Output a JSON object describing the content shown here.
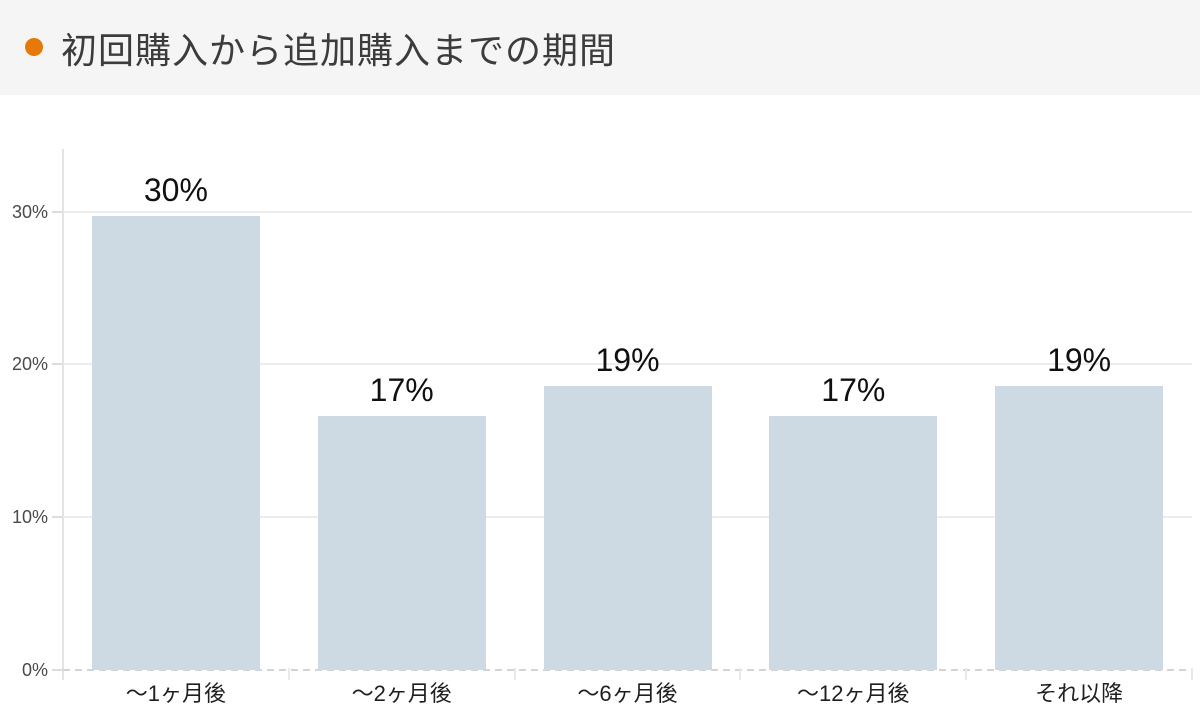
{
  "header": {
    "title": "初回購入から追加購入までの期間",
    "bullet_color": "#e6790a",
    "background": "#f5f5f5"
  },
  "chart_data": {
    "type": "bar",
    "title": "初回購入から追加購入までの期間",
    "categories": [
      "〜1ヶ月後",
      "〜2ヶ月後",
      "〜6ヶ月後",
      "〜12ヶ月後",
      "それ以降"
    ],
    "values": [
      30,
      17,
      19,
      17,
      19
    ],
    "values_precise": [
      29.7,
      16.6,
      18.6,
      16.6,
      18.6
    ],
    "labels": [
      "30%",
      "17%",
      "19%",
      "17%",
      "19%"
    ],
    "xlabel": "",
    "ylabel": "",
    "y_ticks": [
      "0%",
      "10%",
      "20%",
      "30%"
    ],
    "y_tick_values": [
      0,
      10,
      20,
      30
    ],
    "ylim": [
      0,
      34.1
    ],
    "grid": true,
    "legend": "none",
    "bar_color": "#cdd9e3",
    "label_unit": "%"
  }
}
